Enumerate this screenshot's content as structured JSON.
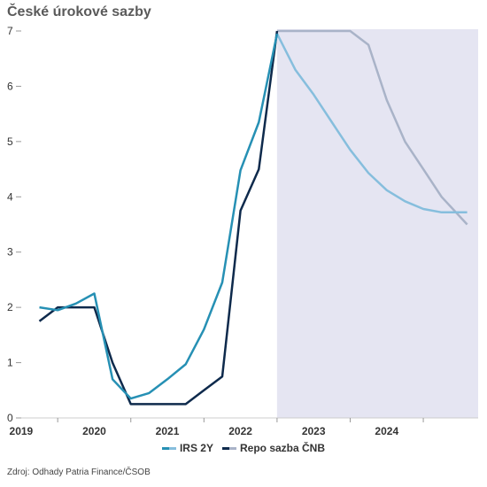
{
  "chart_data": {
    "type": "line",
    "title": "České úrokové sazby",
    "xlabel": "",
    "ylabel": "",
    "x_ticks": [
      "2019",
      "2020",
      "2021",
      "2022",
      "2023",
      "2024"
    ],
    "xlim": [
      2018.55,
      2024.75
    ],
    "ylim": [
      0,
      7
    ],
    "y_ticks": [
      0,
      1,
      2,
      3,
      4,
      5,
      6,
      7
    ],
    "forecast_start": 2022.0,
    "legend_position": "bottom",
    "series": [
      {
        "name": "IRS 2Y",
        "color": "#2690b4",
        "forecast_color": "#86bedd",
        "points": [
          [
            2018.75,
            2.0
          ],
          [
            2019.0,
            1.95
          ],
          [
            2019.25,
            2.07
          ],
          [
            2019.5,
            2.25
          ],
          [
            2019.75,
            0.7
          ],
          [
            2020.0,
            0.35
          ],
          [
            2020.25,
            0.45
          ],
          [
            2020.5,
            0.7
          ],
          [
            2020.75,
            0.97
          ],
          [
            2021.0,
            1.6
          ],
          [
            2021.25,
            2.45
          ],
          [
            2021.5,
            4.48
          ],
          [
            2021.75,
            5.35
          ],
          [
            2022.0,
            6.95
          ]
        ],
        "forecast_points": [
          [
            2022.0,
            6.95
          ],
          [
            2022.25,
            6.3
          ],
          [
            2022.5,
            5.85
          ],
          [
            2022.75,
            5.35
          ],
          [
            2023.0,
            4.85
          ],
          [
            2023.25,
            4.43
          ],
          [
            2023.5,
            4.12
          ],
          [
            2023.75,
            3.92
          ],
          [
            2024.0,
            3.78
          ],
          [
            2024.25,
            3.72
          ],
          [
            2024.6,
            3.72
          ]
        ]
      },
      {
        "name": "Repo sazba ČNB",
        "color": "#0e2a4c",
        "forecast_color": "#a9b3c8",
        "points": [
          [
            2018.75,
            1.75
          ],
          [
            2019.0,
            2.0
          ],
          [
            2019.25,
            2.0
          ],
          [
            2019.5,
            2.0
          ],
          [
            2019.75,
            1.0
          ],
          [
            2020.0,
            0.25
          ],
          [
            2020.25,
            0.25
          ],
          [
            2020.5,
            0.25
          ],
          [
            2020.75,
            0.25
          ],
          [
            2021.0,
            0.5
          ],
          [
            2021.25,
            0.75
          ],
          [
            2021.5,
            3.75
          ],
          [
            2021.75,
            4.5
          ],
          [
            2022.0,
            7.0
          ]
        ],
        "forecast_points": [
          [
            2022.0,
            7.0
          ],
          [
            2022.25,
            7.0
          ],
          [
            2022.5,
            7.0
          ],
          [
            2022.75,
            7.0
          ],
          [
            2023.0,
            7.0
          ],
          [
            2023.25,
            6.75
          ],
          [
            2023.5,
            5.75
          ],
          [
            2023.75,
            5.0
          ],
          [
            2024.0,
            4.5
          ],
          [
            2024.25,
            4.0
          ],
          [
            2024.6,
            3.5
          ]
        ]
      }
    ],
    "source": "Zdroj: Odhady Patria Finance/ČSOB"
  }
}
